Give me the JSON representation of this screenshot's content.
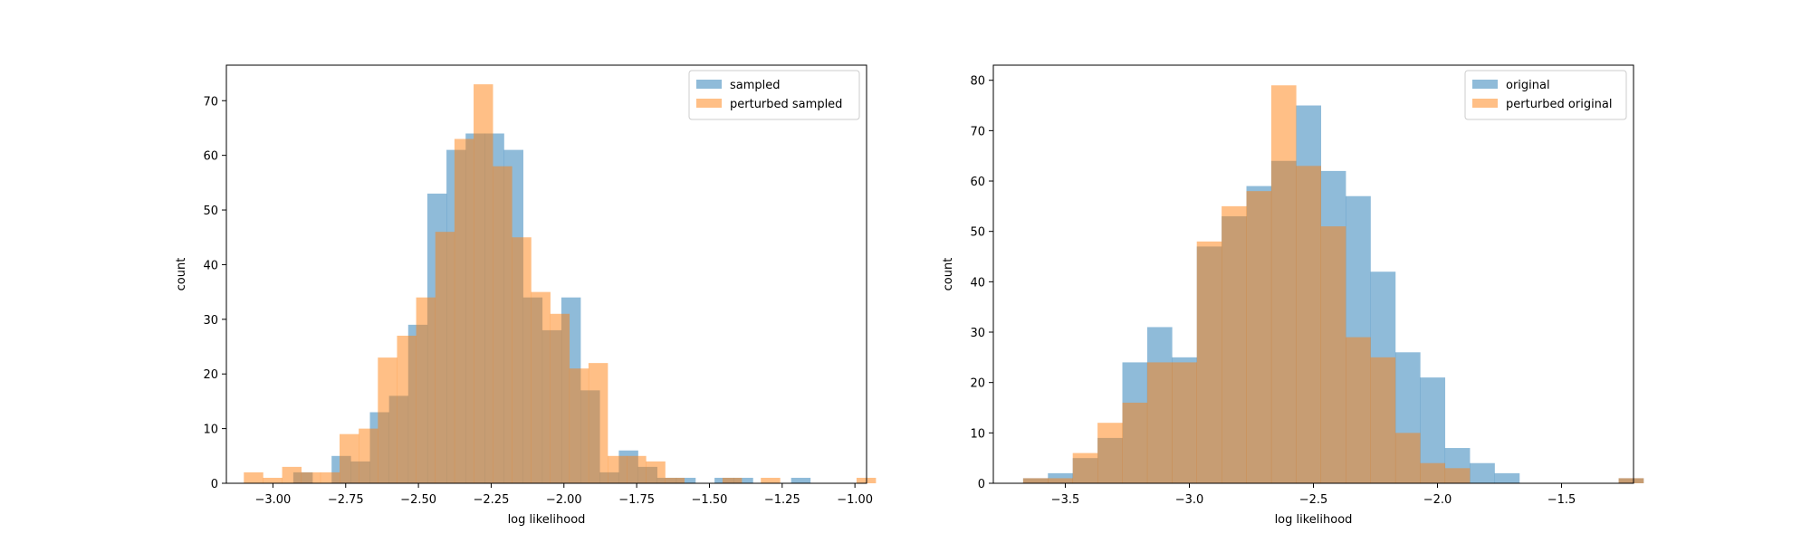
{
  "colors": {
    "blue": "#1f77b4",
    "orange": "#ff7f0e",
    "bar_alpha": 0.5,
    "axes": "#000000",
    "background": "#ffffff"
  },
  "chart_data": [
    {
      "type": "bar",
      "title": "",
      "xlabel": "log likelihood",
      "ylabel": "count",
      "xlim": [
        -3.16,
        -0.96
      ],
      "ylim": [
        0,
        76.5
      ],
      "xticks": [
        -3.0,
        -2.75,
        -2.5,
        -2.25,
        -2.0,
        -1.75,
        -1.5,
        -1.25,
        -1.0
      ],
      "xtick_labels": [
        "−3.00",
        "−2.75",
        "−2.50",
        "−2.25",
        "−2.00",
        "−1.75",
        "−1.50",
        "−1.25",
        "−1.00"
      ],
      "yticks": [
        0,
        10,
        20,
        30,
        40,
        50,
        60,
        70
      ],
      "ytick_labels": [
        "0",
        "10",
        "20",
        "30",
        "40",
        "50",
        "60",
        "70"
      ],
      "legend_position": "top-right",
      "grid": false,
      "series": [
        {
          "name": "sampled",
          "color": "blue",
          "bin_start": -2.93,
          "bin_width": 0.0658,
          "values": [
            2,
            0,
            5,
            4,
            13,
            16,
            29,
            53,
            61,
            64,
            64,
            61,
            34,
            28,
            34,
            17,
            2,
            6,
            3,
            1,
            1,
            0,
            1,
            1,
            0,
            0,
            1
          ]
        },
        {
          "name": "perturbed sampled",
          "color": "orange",
          "bin_start": -3.1,
          "bin_width": 0.0658,
          "values": [
            2,
            1,
            3,
            2,
            2,
            9,
            10,
            23,
            27,
            34,
            46,
            63,
            73,
            58,
            45,
            35,
            31,
            21,
            22,
            5,
            5,
            4,
            1,
            0,
            0,
            1,
            0,
            1,
            0,
            0,
            0,
            0,
            1
          ]
        }
      ]
    },
    {
      "type": "bar",
      "title": "",
      "xlabel": "log likelihood",
      "ylabel": "count",
      "xlim": [
        -3.79,
        -1.21
      ],
      "ylim": [
        0,
        83
      ],
      "xticks": [
        -3.5,
        -3.0,
        -2.5,
        -2.0,
        -1.5
      ],
      "xtick_labels": [
        "−3.5",
        "−3.0",
        "−2.5",
        "−2.0",
        "−1.5"
      ],
      "yticks": [
        0,
        10,
        20,
        30,
        40,
        50,
        60,
        70,
        80
      ],
      "ytick_labels": [
        "0",
        "10",
        "20",
        "30",
        "40",
        "50",
        "60",
        "70",
        "80"
      ],
      "legend_position": "top-right",
      "grid": false,
      "series": [
        {
          "name": "original",
          "color": "blue",
          "bin_start": -3.67,
          "bin_width": 0.1,
          "values": [
            1,
            2,
            5,
            9,
            24,
            31,
            25,
            47,
            53,
            59,
            64,
            75,
            62,
            57,
            42,
            26,
            21,
            7,
            4,
            2,
            0,
            0,
            0,
            0,
            1
          ]
        },
        {
          "name": "perturbed original",
          "color": "orange",
          "bin_start": -3.67,
          "bin_width": 0.1,
          "values": [
            1,
            1,
            6,
            12,
            16,
            24,
            24,
            48,
            55,
            58,
            79,
            63,
            51,
            29,
            25,
            10,
            4,
            3,
            0,
            0,
            0,
            0,
            0,
            0,
            1
          ]
        }
      ]
    }
  ]
}
